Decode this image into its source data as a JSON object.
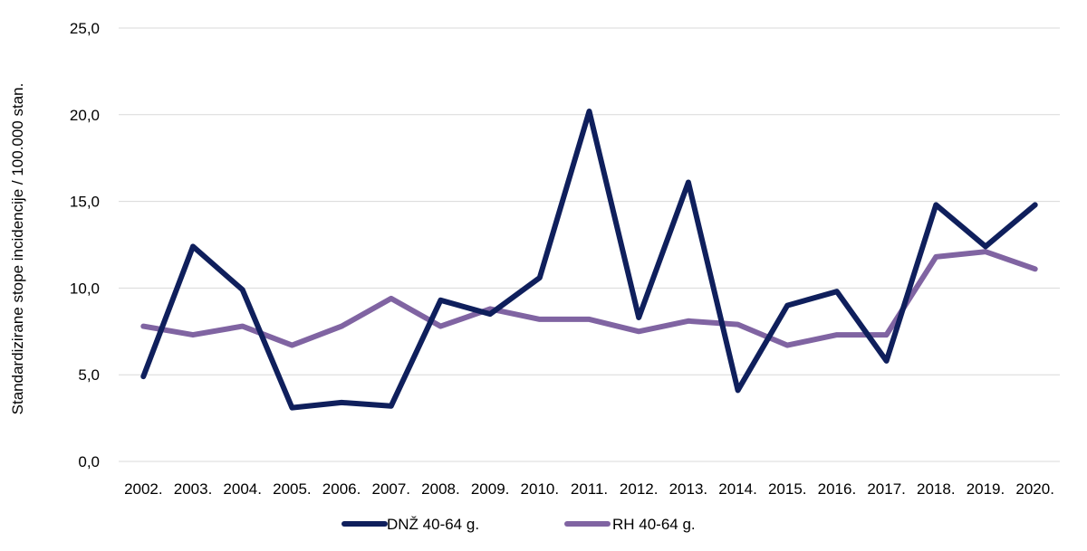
{
  "chart_data": {
    "type": "line",
    "ylabel": "Standardizirane stope incidencije / 100.000 stan.",
    "ylim": [
      0,
      25
    ],
    "yticks": [
      "0,0",
      "5,0",
      "10,0",
      "15,0",
      "20,0",
      "25,0"
    ],
    "grid": true,
    "legend_position": "bottom",
    "categories": [
      "2002.",
      "2003.",
      "2004.",
      "2005.",
      "2006.",
      "2007.",
      "2008.",
      "2009.",
      "2010.",
      "2011.",
      "2012.",
      "2013.",
      "2014.",
      "2015.",
      "2016.",
      "2017.",
      "2018.",
      "2019.",
      "2020."
    ],
    "series": [
      {
        "name": "DNŽ 40-64 g.",
        "color": "#0f1f5c",
        "values": [
          4.9,
          12.4,
          9.9,
          3.1,
          3.4,
          3.2,
          9.3,
          8.5,
          10.6,
          20.2,
          8.3,
          16.1,
          4.1,
          9.0,
          9.8,
          5.8,
          14.8,
          12.4,
          14.8
        ]
      },
      {
        "name": "RH 40-64 g.",
        "color": "#8064a2",
        "values": [
          7.8,
          7.3,
          7.8,
          6.7,
          7.8,
          9.4,
          7.8,
          8.8,
          8.2,
          8.2,
          7.5,
          8.1,
          7.9,
          6.7,
          7.3,
          7.3,
          11.8,
          12.1,
          11.1
        ]
      }
    ]
  }
}
